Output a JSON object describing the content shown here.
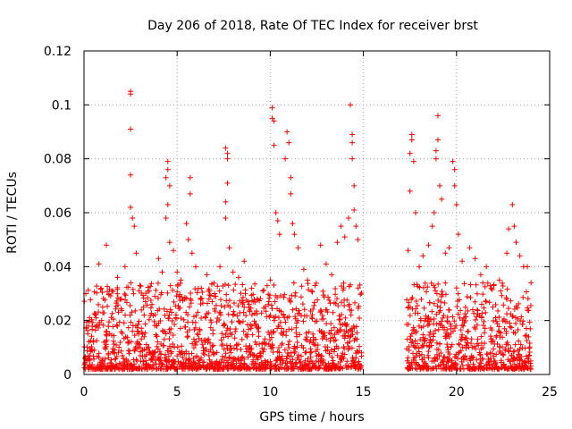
{
  "chart_data": {
    "type": "scatter",
    "title": "Day 206 of 2018, Rate Of TEC Index for receiver brst",
    "xlabel": "GPS time / hours",
    "ylabel": "ROTI / TECUs",
    "xlim": [
      0,
      25
    ],
    "ylim": [
      0,
      0.12
    ],
    "xticks": [
      0,
      5,
      10,
      15,
      20,
      25
    ],
    "xtick_labels": [
      "0",
      "5",
      "10",
      "15",
      "20",
      "25"
    ],
    "yticks": [
      0,
      0.02,
      0.04,
      0.06,
      0.08,
      0.1,
      0.12
    ],
    "ytick_labels": [
      "0",
      "0.02",
      "0.04",
      "0.06",
      "0.08",
      "0.1",
      "0.12"
    ],
    "grid": true,
    "marker": "+",
    "color": "#ff0000",
    "data_gap_hours": [
      14.9,
      17.3
    ],
    "series": [
      {
        "name": "ROTI",
        "points": [
          [
            0.1,
            0.03
          ],
          [
            0.3,
            0.021
          ],
          [
            0.5,
            0.012
          ],
          [
            0.8,
            0.041
          ],
          [
            1.0,
            0.025
          ],
          [
            1.2,
            0.048
          ],
          [
            1.5,
            0.031
          ],
          [
            1.8,
            0.036
          ],
          [
            2.0,
            0.028
          ],
          [
            2.2,
            0.04
          ],
          [
            2.5,
            0.105
          ],
          [
            2.5,
            0.104
          ],
          [
            2.5,
            0.091
          ],
          [
            2.5,
            0.074
          ],
          [
            2.5,
            0.062
          ],
          [
            2.6,
            0.058
          ],
          [
            2.7,
            0.055
          ],
          [
            2.8,
            0.045
          ],
          [
            3.0,
            0.033
          ],
          [
            3.3,
            0.027
          ],
          [
            3.5,
            0.031
          ],
          [
            3.8,
            0.029
          ],
          [
            4.0,
            0.043
          ],
          [
            4.2,
            0.038
          ],
          [
            4.4,
            0.073
          ],
          [
            4.5,
            0.079
          ],
          [
            4.5,
            0.076
          ],
          [
            4.6,
            0.07
          ],
          [
            4.5,
            0.063
          ],
          [
            4.4,
            0.058
          ],
          [
            4.6,
            0.049
          ],
          [
            4.8,
            0.046
          ],
          [
            5.0,
            0.038
          ],
          [
            5.2,
            0.035
          ],
          [
            5.5,
            0.056
          ],
          [
            5.6,
            0.05
          ],
          [
            5.7,
            0.073
          ],
          [
            5.7,
            0.067
          ],
          [
            5.8,
            0.045
          ],
          [
            6.0,
            0.04
          ],
          [
            6.3,
            0.032
          ],
          [
            6.6,
            0.037
          ],
          [
            7.0,
            0.029
          ],
          [
            7.3,
            0.04
          ],
          [
            7.6,
            0.084
          ],
          [
            7.7,
            0.082
          ],
          [
            7.7,
            0.08
          ],
          [
            7.7,
            0.071
          ],
          [
            7.6,
            0.064
          ],
          [
            7.6,
            0.058
          ],
          [
            7.8,
            0.047
          ],
          [
            8.0,
            0.038
          ],
          [
            8.3,
            0.036
          ],
          [
            8.6,
            0.042
          ],
          [
            9.0,
            0.032
          ],
          [
            9.3,
            0.028
          ],
          [
            9.6,
            0.031
          ],
          [
            10.0,
            0.035
          ],
          [
            10.1,
            0.099
          ],
          [
            10.1,
            0.095
          ],
          [
            10.2,
            0.094
          ],
          [
            10.2,
            0.085
          ],
          [
            10.3,
            0.06
          ],
          [
            10.4,
            0.057
          ],
          [
            10.5,
            0.052
          ],
          [
            10.8,
            0.08
          ],
          [
            10.9,
            0.09
          ],
          [
            11.0,
            0.086
          ],
          [
            11.1,
            0.073
          ],
          [
            11.1,
            0.067
          ],
          [
            11.2,
            0.056
          ],
          [
            11.3,
            0.052
          ],
          [
            11.5,
            0.047
          ],
          [
            11.8,
            0.039
          ],
          [
            12.0,
            0.035
          ],
          [
            12.4,
            0.033
          ],
          [
            12.7,
            0.048
          ],
          [
            13.0,
            0.041
          ],
          [
            13.3,
            0.037
          ],
          [
            13.6,
            0.049
          ],
          [
            13.8,
            0.055
          ],
          [
            14.0,
            0.051
          ],
          [
            14.2,
            0.058
          ],
          [
            14.3,
            0.1
          ],
          [
            14.4,
            0.089
          ],
          [
            14.4,
            0.086
          ],
          [
            14.4,
            0.08
          ],
          [
            14.5,
            0.07
          ],
          [
            14.5,
            0.061
          ],
          [
            14.6,
            0.055
          ],
          [
            14.7,
            0.05
          ],
          [
            17.4,
            0.046
          ],
          [
            17.5,
            0.068
          ],
          [
            17.5,
            0.082
          ],
          [
            17.6,
            0.089
          ],
          [
            17.6,
            0.087
          ],
          [
            17.7,
            0.079
          ],
          [
            17.8,
            0.06
          ],
          [
            18.0,
            0.04
          ],
          [
            18.2,
            0.044
          ],
          [
            18.5,
            0.048
          ],
          [
            18.7,
            0.055
          ],
          [
            18.8,
            0.06
          ],
          [
            18.9,
            0.08
          ],
          [
            18.9,
            0.083
          ],
          [
            19.0,
            0.096
          ],
          [
            19.0,
            0.087
          ],
          [
            19.1,
            0.07
          ],
          [
            19.2,
            0.065
          ],
          [
            19.4,
            0.045
          ],
          [
            19.6,
            0.047
          ],
          [
            19.8,
            0.079
          ],
          [
            19.9,
            0.076
          ],
          [
            19.9,
            0.07
          ],
          [
            20.0,
            0.063
          ],
          [
            20.1,
            0.052
          ],
          [
            20.3,
            0.042
          ],
          [
            20.7,
            0.047
          ],
          [
            21.0,
            0.043
          ],
          [
            21.3,
            0.037
          ],
          [
            21.6,
            0.04
          ],
          [
            22.0,
            0.033
          ],
          [
            22.3,
            0.035
          ],
          [
            22.7,
            0.045
          ],
          [
            22.8,
            0.054
          ],
          [
            23.0,
            0.063
          ],
          [
            23.1,
            0.055
          ],
          [
            23.2,
            0.049
          ],
          [
            23.4,
            0.044
          ],
          [
            23.6,
            0.04
          ],
          [
            23.8,
            0.04
          ],
          [
            24.0,
            0.034
          ]
        ]
      }
    ]
  }
}
